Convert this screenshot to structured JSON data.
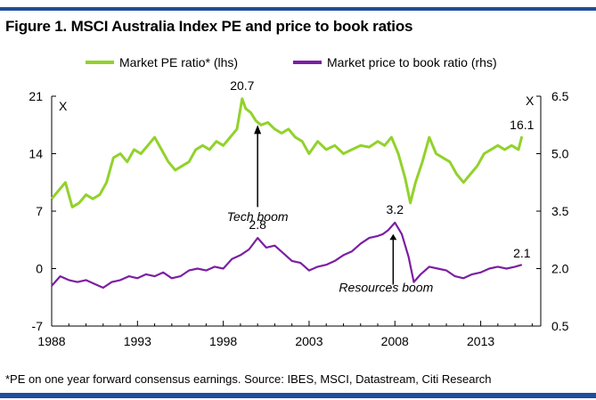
{
  "figure_title": "Figure 1. MSCI Australia Index PE and price to book ratios",
  "footnote": "*PE on one year forward consensus earnings. Source: IBES, MSCI, Datastream, Citi Research",
  "colors": {
    "pe": "#92d22b",
    "pb": "#7b1fa2",
    "rule": "#1f4e9c"
  },
  "chart_data": {
    "type": "line",
    "title": "Figure 1. MSCI Australia Index PE and price to book ratios",
    "xlabel": "",
    "ylabel_left": "X",
    "ylabel_right": "X",
    "xlim": [
      1988,
      2016.5
    ],
    "ylim_left": [
      -7,
      21
    ],
    "ylim_right": [
      0.5,
      6.5
    ],
    "x_ticks": [
      1988,
      1993,
      1998,
      2003,
      2008,
      2013
    ],
    "y_ticks_left": [
      21,
      14,
      7,
      0,
      -7
    ],
    "y_ticks_right": [
      "6.5",
      "5.0",
      "3.5",
      "2.0",
      "0.5"
    ],
    "legend": {
      "placement": "top-center",
      "entries": [
        "Market PE ratio* (lhs)",
        "Market price to book ratio (rhs)"
      ]
    },
    "series": [
      {
        "name": "Market PE ratio* (lhs)",
        "axis": "left",
        "x": [
          1988.0,
          1988.4,
          1988.8,
          1989.2,
          1989.6,
          1990.0,
          1990.4,
          1990.8,
          1991.2,
          1991.6,
          1992.0,
          1992.4,
          1992.8,
          1993.2,
          1993.6,
          1994.0,
          1994.4,
          1994.8,
          1995.2,
          1995.6,
          1996.0,
          1996.4,
          1996.8,
          1997.2,
          1997.6,
          1998.0,
          1998.4,
          1998.8,
          1999.1,
          1999.3,
          1999.6,
          1999.9,
          2000.2,
          2000.6,
          2001.0,
          2001.4,
          2001.8,
          2002.2,
          2002.6,
          2003.0,
          2003.5,
          2004.0,
          2004.5,
          2005.0,
          2005.5,
          2006.0,
          2006.5,
          2007.0,
          2007.4,
          2007.8,
          2008.2,
          2008.6,
          2008.9,
          2009.2,
          2009.6,
          2010.0,
          2010.4,
          2010.8,
          2011.2,
          2011.6,
          2012.0,
          2012.4,
          2012.8,
          2013.2,
          2013.6,
          2014.0,
          2014.4,
          2014.8,
          2015.2,
          2015.4
        ],
        "values": [
          8.5,
          9.5,
          10.5,
          7.5,
          8.0,
          9.0,
          8.5,
          9.0,
          10.5,
          13.5,
          14.0,
          13.0,
          14.5,
          14.0,
          15.0,
          16.0,
          14.5,
          13.0,
          12.0,
          12.5,
          13.0,
          14.5,
          15.0,
          14.5,
          15.5,
          15.0,
          16.0,
          17.0,
          20.7,
          19.5,
          19.0,
          18.0,
          17.5,
          17.8,
          17.0,
          16.5,
          17.0,
          16.0,
          15.5,
          14.0,
          15.5,
          14.5,
          15.0,
          14.0,
          14.5,
          15.0,
          14.8,
          15.5,
          15.0,
          16.0,
          14.0,
          11.0,
          8.0,
          10.5,
          13.0,
          16.0,
          14.0,
          13.5,
          13.0,
          11.5,
          10.5,
          11.5,
          12.5,
          14.0,
          14.5,
          15.0,
          14.5,
          15.0,
          14.5,
          16.1
        ]
      },
      {
        "name": "Market price to book ratio (rhs)",
        "axis": "right",
        "x": [
          1988.0,
          1988.5,
          1989.0,
          1989.5,
          1990.0,
          1990.5,
          1991.0,
          1991.5,
          1992.0,
          1992.5,
          1993.0,
          1993.5,
          1994.0,
          1994.5,
          1995.0,
          1995.5,
          1996.0,
          1996.5,
          1997.0,
          1997.5,
          1998.0,
          1998.5,
          1999.0,
          1999.5,
          2000.0,
          2000.5,
          2001.0,
          2001.5,
          2002.0,
          2002.5,
          2003.0,
          2003.5,
          2004.0,
          2004.5,
          2005.0,
          2005.5,
          2006.0,
          2006.5,
          2007.0,
          2007.3,
          2007.6,
          2008.0,
          2008.4,
          2008.8,
          2009.1,
          2009.5,
          2010.0,
          2010.5,
          2011.0,
          2011.5,
          2012.0,
          2012.5,
          2013.0,
          2013.5,
          2014.0,
          2014.5,
          2015.0,
          2015.4
        ],
        "values": [
          1.55,
          1.8,
          1.7,
          1.65,
          1.7,
          1.6,
          1.5,
          1.65,
          1.7,
          1.8,
          1.75,
          1.85,
          1.8,
          1.9,
          1.75,
          1.8,
          1.95,
          2.0,
          1.95,
          2.05,
          2.0,
          2.25,
          2.35,
          2.5,
          2.8,
          2.55,
          2.6,
          2.4,
          2.2,
          2.15,
          1.95,
          2.05,
          2.1,
          2.2,
          2.35,
          2.45,
          2.65,
          2.8,
          2.85,
          2.9,
          3.0,
          3.2,
          2.9,
          2.3,
          1.65,
          1.85,
          2.05,
          2.0,
          1.95,
          1.8,
          1.75,
          1.85,
          1.9,
          2.0,
          2.05,
          2.0,
          2.05,
          2.1
        ]
      }
    ],
    "data_labels": [
      {
        "series": "Market PE ratio* (lhs)",
        "x": 1999.1,
        "value": 20.7,
        "label": "20.7"
      },
      {
        "series": "Market PE ratio* (lhs)",
        "x": 2015.4,
        "value": 16.1,
        "label": "16.1"
      },
      {
        "series": "Market price to book ratio (rhs)",
        "x": 2000.0,
        "value": 2.8,
        "label": "2.8"
      },
      {
        "series": "Market price to book ratio (rhs)",
        "x": 2008.0,
        "value": 3.2,
        "label": "3.2"
      },
      {
        "series": "Market price to book ratio (rhs)",
        "x": 2015.4,
        "value": 2.1,
        "label": "2.1"
      }
    ],
    "annotations": [
      {
        "text": "Tech boom",
        "x": 2000.0
      },
      {
        "text": "Resources boom",
        "x": 2007.9
      }
    ]
  }
}
